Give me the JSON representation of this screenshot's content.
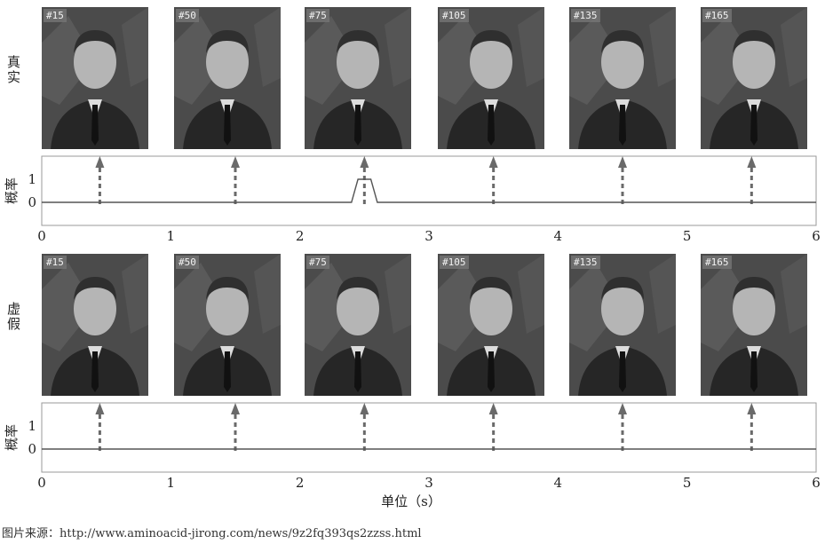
{
  "frame_labels": [
    "#15",
    "#50",
    "#75",
    "#105",
    "#135",
    "#165"
  ],
  "colors": {
    "axis": "#9a9a9a",
    "line": "#555555",
    "arrow": "#6a6a6a",
    "text": "#222222"
  },
  "chart_data": [
    {
      "type": "line",
      "row_label": "真实",
      "ylabel": "概率",
      "xlabel": "",
      "xlim": [
        0,
        6
      ],
      "ylim": [
        -1,
        2
      ],
      "xticks": [
        "0",
        "1",
        "2",
        "3",
        "4",
        "5",
        "6"
      ],
      "yticks": [
        "0",
        "1"
      ],
      "grid": false,
      "series": [
        {
          "x": [
            0,
            2.4,
            2.45,
            2.55,
            2.6,
            6
          ],
          "y": [
            0,
            0,
            1,
            1,
            0,
            0
          ]
        }
      ],
      "markers_x": [
        0.45,
        1.5,
        2.5,
        3.5,
        4.5,
        5.5
      ]
    },
    {
      "type": "line",
      "row_label": "虚假",
      "ylabel": "概率",
      "xlabel": "单位（s）",
      "xlim": [
        0,
        6
      ],
      "ylim": [
        -1,
        2
      ],
      "xticks": [
        "0",
        "1",
        "2",
        "3",
        "4",
        "5",
        "6"
      ],
      "yticks": [
        "0",
        "1"
      ],
      "grid": false,
      "series": [
        {
          "x": [
            0,
            6
          ],
          "y": [
            0,
            0
          ]
        }
      ],
      "markers_x": [
        0.45,
        1.5,
        2.5,
        3.5,
        4.5,
        5.5
      ]
    }
  ],
  "source": "图片来源：http://www.aminoacid-jirong.com/news/9z2fq393qs2zzss.html"
}
